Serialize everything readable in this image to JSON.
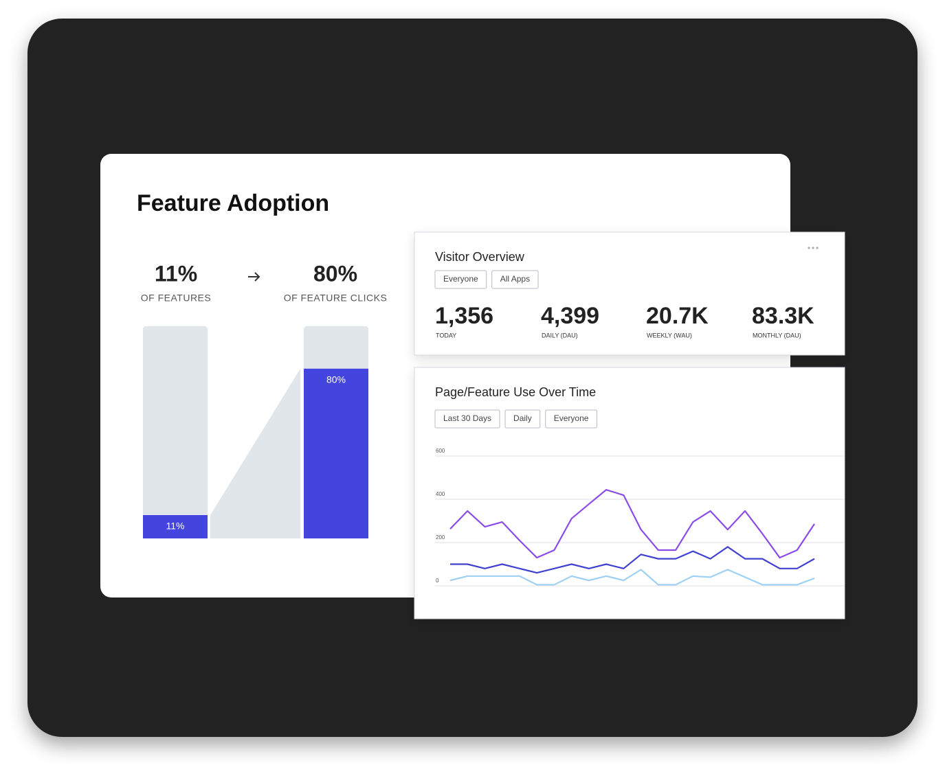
{
  "chart_data": [
    {
      "type": "bar",
      "title": "Feature Adoption",
      "categories": [
        "OF FEATURES",
        "OF FEATURE CLICKS"
      ],
      "values": [
        11,
        80
      ],
      "value_labels": [
        "11%",
        "80%"
      ],
      "color": "#4444de",
      "ylim": [
        0,
        100
      ]
    },
    {
      "type": "line",
      "title": "Page/Feature Use Over Time",
      "filters": [
        "Last 30 Days",
        "Daily",
        "Everyone"
      ],
      "ylim": [
        0,
        600
      ],
      "yticks": [
        0,
        200,
        400,
        600
      ],
      "grid": true,
      "series": [
        {
          "color": "#8a4be8",
          "values": [
            263,
            346,
            273,
            295,
            210,
            130,
            165,
            311,
            378,
            444,
            419,
            260,
            165,
            165,
            295,
            346,
            260,
            346,
            241,
            130,
            165,
            286
          ]
        },
        {
          "color": "#4040d0",
          "values": [
            100,
            100,
            80,
            100,
            80,
            60,
            80,
            100,
            80,
            100,
            80,
            145,
            125,
            125,
            160,
            125,
            180,
            125,
            125,
            80,
            80,
            125
          ]
        },
        {
          "color": "#9dd0f2",
          "values": [
            25,
            45,
            45,
            45,
            45,
            5,
            5,
            45,
            25,
            45,
            25,
            75,
            5,
            5,
            45,
            40,
            75,
            40,
            5,
            5,
            5,
            35
          ]
        }
      ]
    }
  ],
  "visitor_overview": {
    "title": "Visitor Overview",
    "filters": [
      "Everyone",
      "All Apps"
    ],
    "metrics": [
      {
        "value": "1,356",
        "label": "TODAY"
      },
      {
        "value": "4,399",
        "label": "DAILY (DAU)"
      },
      {
        "value": "20.7K",
        "label": "WEEKLY (WAU)"
      },
      {
        "value": "83.3K",
        "label": "MONTHLY (DAU)"
      }
    ]
  }
}
